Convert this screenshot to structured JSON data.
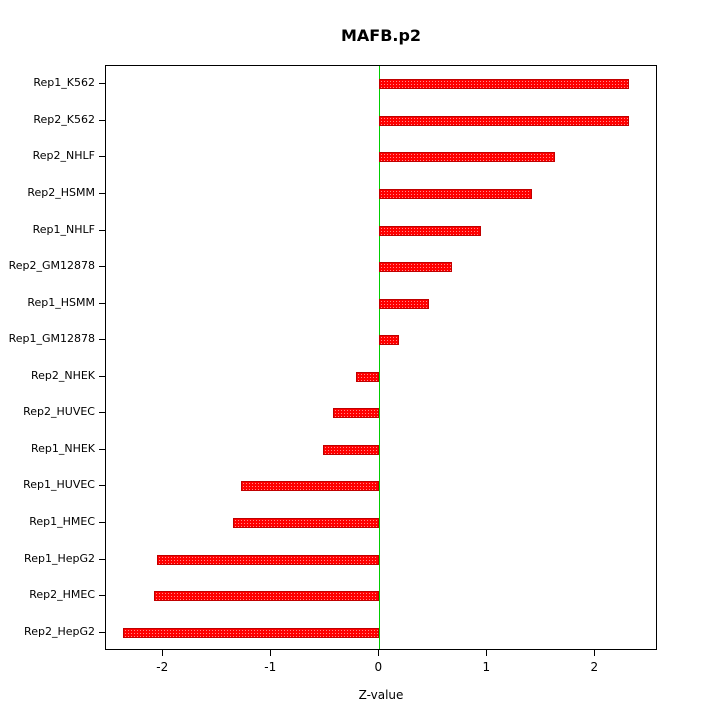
{
  "chart_data": {
    "type": "bar",
    "orientation": "horizontal",
    "title": "MAFB.p2",
    "xlabel": "Z-value",
    "ylabel": "",
    "xlim": [
      -2.53,
      2.58
    ],
    "grid": false,
    "legend": "none",
    "bar_color": "#ff0000",
    "zero_line_color": "#00cc00",
    "categories": [
      "Rep1_K562",
      "Rep2_K562",
      "Rep2_NHLF",
      "Rep2_HSMM",
      "Rep1_NHLF",
      "Rep2_GM12878",
      "Rep1_HSMM",
      "Rep1_GM12878",
      "Rep2_NHEK",
      "Rep2_HUVEC",
      "Rep1_NHEK",
      "Rep1_HUVEC",
      "Rep1_HMEC",
      "Rep1_HepG2",
      "Rep2_HMEC",
      "Rep2_HepG2"
    ],
    "values": [
      2.31,
      2.31,
      1.63,
      1.41,
      0.94,
      0.67,
      0.46,
      0.18,
      -0.22,
      -0.43,
      -0.52,
      -1.28,
      -1.35,
      -2.06,
      -2.09,
      -2.37
    ],
    "xtick_values": [
      -2,
      -1,
      0,
      1,
      2
    ],
    "xtick_labels": [
      "-2",
      "-1",
      "0",
      "1",
      "2"
    ]
  }
}
